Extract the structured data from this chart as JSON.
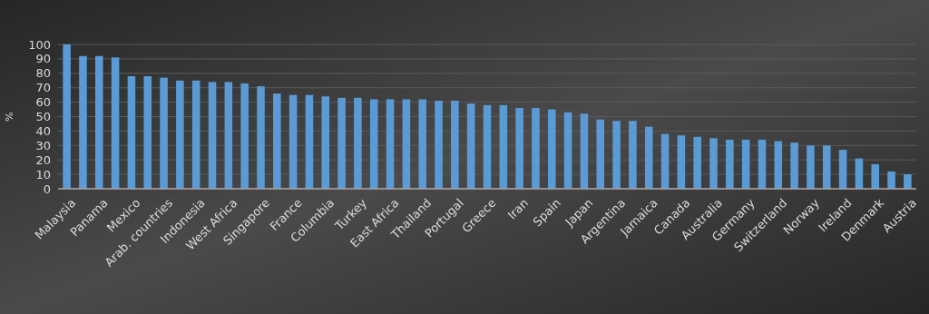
{
  "chart_data": {
    "type": "bar",
    "ylabel": "%",
    "categories": [
      "Malaysia",
      null,
      "Panama",
      null,
      "Mexico",
      null,
      "Arab. countries",
      null,
      "Indonesia",
      null,
      "West Africa",
      null,
      "Singapore",
      null,
      "France",
      null,
      "Columbia",
      null,
      "Turkey",
      null,
      "East Africa",
      null,
      "Thailand",
      null,
      "Portugal",
      null,
      "Greece",
      null,
      "Iran",
      null,
      "Spain",
      null,
      "Japan",
      null,
      "Argentina",
      null,
      "Jamaica",
      null,
      "Canada",
      null,
      "Australia",
      null,
      "Germany",
      null,
      "Switzerland",
      null,
      "Norway",
      null,
      "Ireland",
      null,
      "Denmark",
      null,
      "Austria"
    ],
    "values": [
      100,
      92,
      92,
      91,
      78,
      78,
      77,
      75,
      75,
      74,
      74,
      73,
      71,
      66,
      65,
      65,
      64,
      63,
      63,
      62,
      62,
      62,
      62,
      61,
      61,
      59,
      58,
      58,
      56,
      56,
      55,
      53,
      52,
      48,
      47,
      47,
      43,
      38,
      37,
      36,
      35,
      34,
      34,
      34,
      33,
      32,
      30,
      30,
      27,
      21,
      17,
      12,
      10
    ],
    "color": "#5b9bd5",
    "ylim": [
      0,
      100
    ],
    "yticks": [
      0,
      10,
      20,
      30,
      40,
      50,
      60,
      70,
      80,
      90,
      100
    ],
    "grid": "y"
  }
}
